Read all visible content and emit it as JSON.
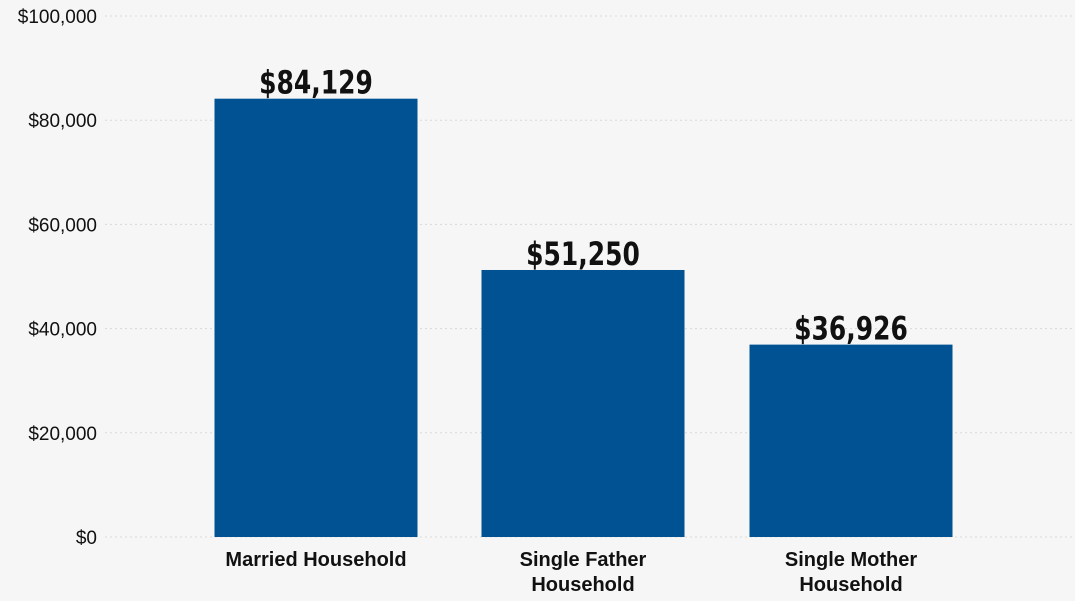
{
  "chart_data": {
    "type": "bar",
    "categories": [
      "Married Household",
      "Single Father Household",
      "Single Mother Household"
    ],
    "category_lines": [
      [
        "Married Household"
      ],
      [
        "Single Father",
        "Household"
      ],
      [
        "Single Mother",
        "Household"
      ]
    ],
    "values": [
      84129,
      51250,
      36926
    ],
    "data_labels": [
      "$84,129",
      "$51,250",
      "$36,926"
    ],
    "yticks": [
      0,
      20000,
      40000,
      60000,
      80000,
      100000
    ],
    "ytick_labels": [
      "$0",
      "$20,000",
      "$40,000",
      "$60,000",
      "$80,000",
      "$100,000"
    ],
    "ylim": [
      0,
      100000
    ],
    "grid": true,
    "bar_color": "#005293",
    "background": "#f6f6f6"
  }
}
